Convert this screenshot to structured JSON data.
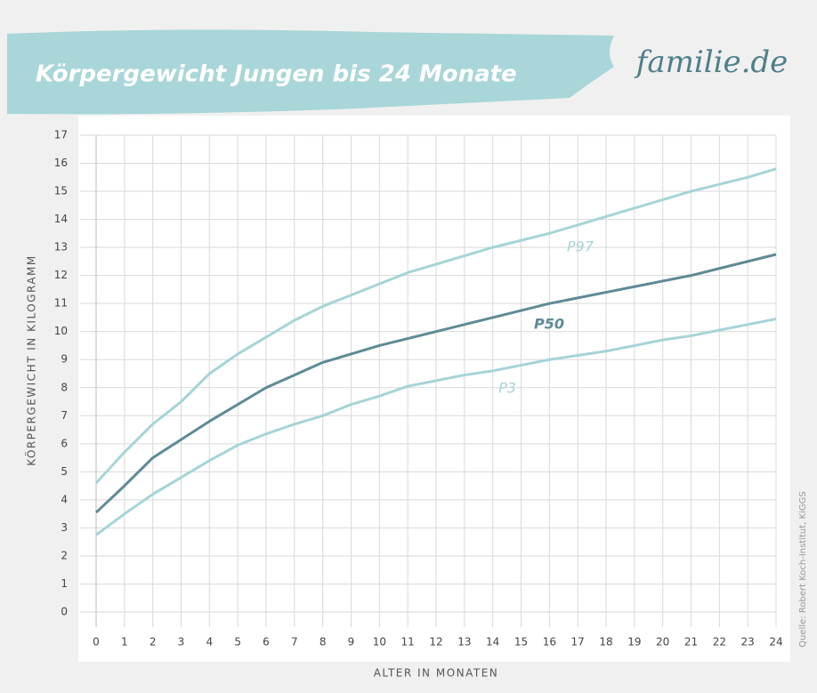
{
  "chart_data": {
    "type": "line",
    "title": "Körpergewicht Jungen bis 24 Monate",
    "logo": "familie.de",
    "x_label": "ALTER IN MONATEN",
    "y_label": "KÖRPERGEWICHT IN KILOGRAMM",
    "source": "Quelle: Robert Koch-Institut, KiGGS",
    "x": [
      0,
      1,
      2,
      3,
      4,
      5,
      6,
      7,
      8,
      9,
      10,
      11,
      12,
      13,
      14,
      15,
      16,
      17,
      18,
      19,
      20,
      21,
      22,
      23,
      24
    ],
    "series": [
      {
        "name": "P97",
        "color": "#a6d4d6",
        "values": [
          4.6,
          5.7,
          6.7,
          7.5,
          8.5,
          9.2,
          9.8,
          10.4,
          10.9,
          11.3,
          11.7,
          12.1,
          12.4,
          12.7,
          13.0,
          13.25,
          13.5,
          13.8,
          14.1,
          14.4,
          14.7,
          15.0,
          15.25,
          15.5,
          15.8
        ]
      },
      {
        "name": "P50",
        "color": "#5e8a96",
        "values": [
          3.55,
          4.5,
          5.5,
          6.15,
          6.8,
          7.4,
          8.0,
          8.45,
          8.9,
          9.2,
          9.5,
          9.75,
          10.0,
          10.25,
          10.5,
          10.75,
          11.0,
          11.2,
          11.4,
          11.6,
          11.8,
          12.0,
          12.25,
          12.5,
          12.75
        ]
      },
      {
        "name": "P3",
        "color": "#a6d4d6",
        "values": [
          2.75,
          3.5,
          4.2,
          4.8,
          5.4,
          5.95,
          6.35,
          6.7,
          7.0,
          7.4,
          7.7,
          8.05,
          8.25,
          8.45,
          8.6,
          8.8,
          9.0,
          9.15,
          9.3,
          9.5,
          9.7,
          9.85,
          10.05,
          10.25,
          10.45
        ]
      }
    ],
    "xlim": [
      0,
      24
    ],
    "ylim": [
      0,
      17
    ],
    "xticks": [
      0,
      1,
      2,
      3,
      4,
      5,
      6,
      7,
      8,
      9,
      10,
      11,
      12,
      13,
      14,
      15,
      16,
      17,
      18,
      19,
      20,
      21,
      22,
      23,
      24
    ],
    "yticks": [
      0,
      1,
      2,
      3,
      4,
      5,
      6,
      7,
      8,
      9,
      10,
      11,
      12,
      13,
      14,
      15,
      16,
      17
    ],
    "grid": true
  }
}
